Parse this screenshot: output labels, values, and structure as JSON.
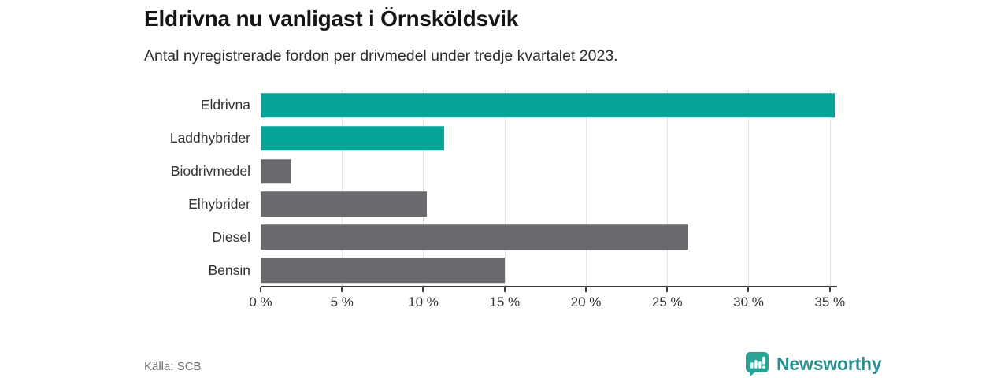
{
  "header": {
    "title": "Eldrivna nu vanligast i Örnsköldsvik",
    "subtitle": "Antal nyregistrerade fordon per drivmedel under tredje kvartalet 2023."
  },
  "chart_data": {
    "type": "bar",
    "orientation": "horizontal",
    "title": "Eldrivna nu vanligast i Örnsköldsvik",
    "subtitle": "Antal nyregistrerade fordon per drivmedel under tredje kvartalet 2023.",
    "categories": [
      "Eldrivna",
      "Laddhybrider",
      "Biodrivmedel",
      "Elhybrider",
      "Diesel",
      "Bensin"
    ],
    "values": [
      35.3,
      11.3,
      1.9,
      10.2,
      26.3,
      15.0
    ],
    "unit": "%",
    "bar_colors": [
      "#06a398",
      "#06a398",
      "#6b686e",
      "#6b686e",
      "#6b686e",
      "#6b686e"
    ],
    "xlim": [
      0,
      35.4
    ],
    "x_ticks": [
      0,
      5,
      10,
      15,
      20,
      25,
      30,
      35
    ],
    "x_tick_labels": [
      "0 %",
      "5 %",
      "10 %",
      "15 %",
      "20 %",
      "25 %",
      "30 %",
      "35 %"
    ],
    "xlabel": "",
    "ylabel": "",
    "grid": "vertical-only",
    "legend": "none"
  },
  "footer": {
    "source": "Källa: SCB",
    "brand": "Newsworthy"
  },
  "colors": {
    "accent_teal": "#06a398",
    "bar_gray": "#6b686e",
    "gridline": "#e3e3e3",
    "axis": "#3a3a3a",
    "logo_icon_teal": "#2ba296",
    "logo_text_teal": "#2d8f8d"
  },
  "icons": {
    "brand_icon": "newsworthy-chart-bubble-icon"
  }
}
